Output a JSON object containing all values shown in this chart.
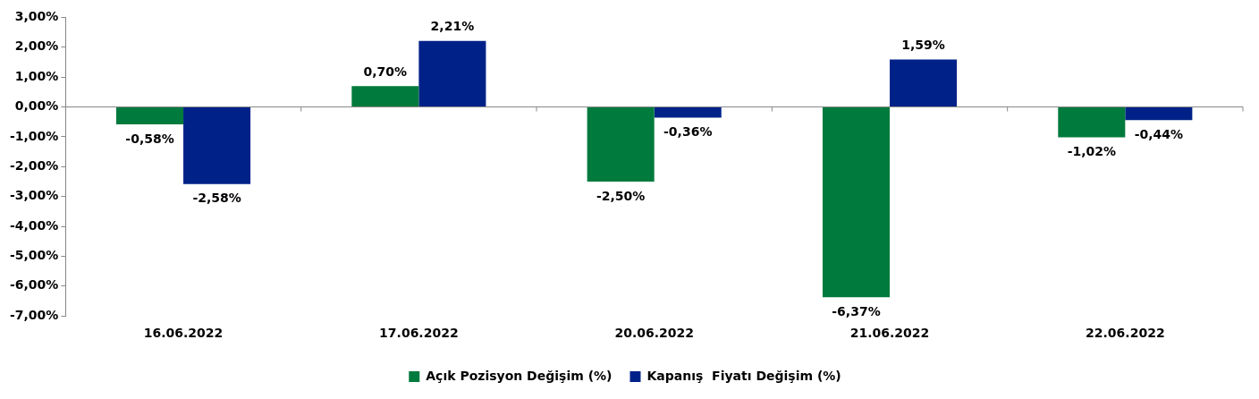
{
  "chart_data": {
    "type": "bar",
    "categories": [
      "16.06.2022",
      "17.06.2022",
      "20.06.2022",
      "21.06.2022",
      "22.06.2022"
    ],
    "series": [
      {
        "name": "Açık Pozisyon Değişim (%)",
        "color": "#007a3d",
        "values": [
          -0.58,
          0.7,
          -2.5,
          -6.37,
          -1.02
        ],
        "value_labels": [
          "-0,58%",
          "0,70%",
          "-2,50%",
          "-6,37%",
          "-1,02%"
        ]
      },
      {
        "name": "Kapanış  Fiyatı Değişim (%)",
        "color": "#002288",
        "values": [
          -2.58,
          2.21,
          -0.36,
          1.59,
          -0.44
        ],
        "value_labels": [
          "-2,58%",
          "2,21%",
          "-0,36%",
          "1,59%",
          "-0,44%"
        ]
      }
    ],
    "ylim": [
      -7,
      3
    ],
    "yticks": [
      {
        "value": -7,
        "label": "-7,00%"
      },
      {
        "value": -6,
        "label": "-6,00%"
      },
      {
        "value": -5,
        "label": "-5,00%"
      },
      {
        "value": -4,
        "label": "-4,00%"
      },
      {
        "value": -3,
        "label": "-3,00%"
      },
      {
        "value": -2,
        "label": "-2,00%"
      },
      {
        "value": -1,
        "label": "-1,00%"
      },
      {
        "value": 0,
        "label": "0,00%"
      },
      {
        "value": 1,
        "label": "1,00%"
      },
      {
        "value": 2,
        "label": "2,00%"
      },
      {
        "value": 3,
        "label": "3,00%"
      }
    ],
    "legend": "bottom"
  }
}
